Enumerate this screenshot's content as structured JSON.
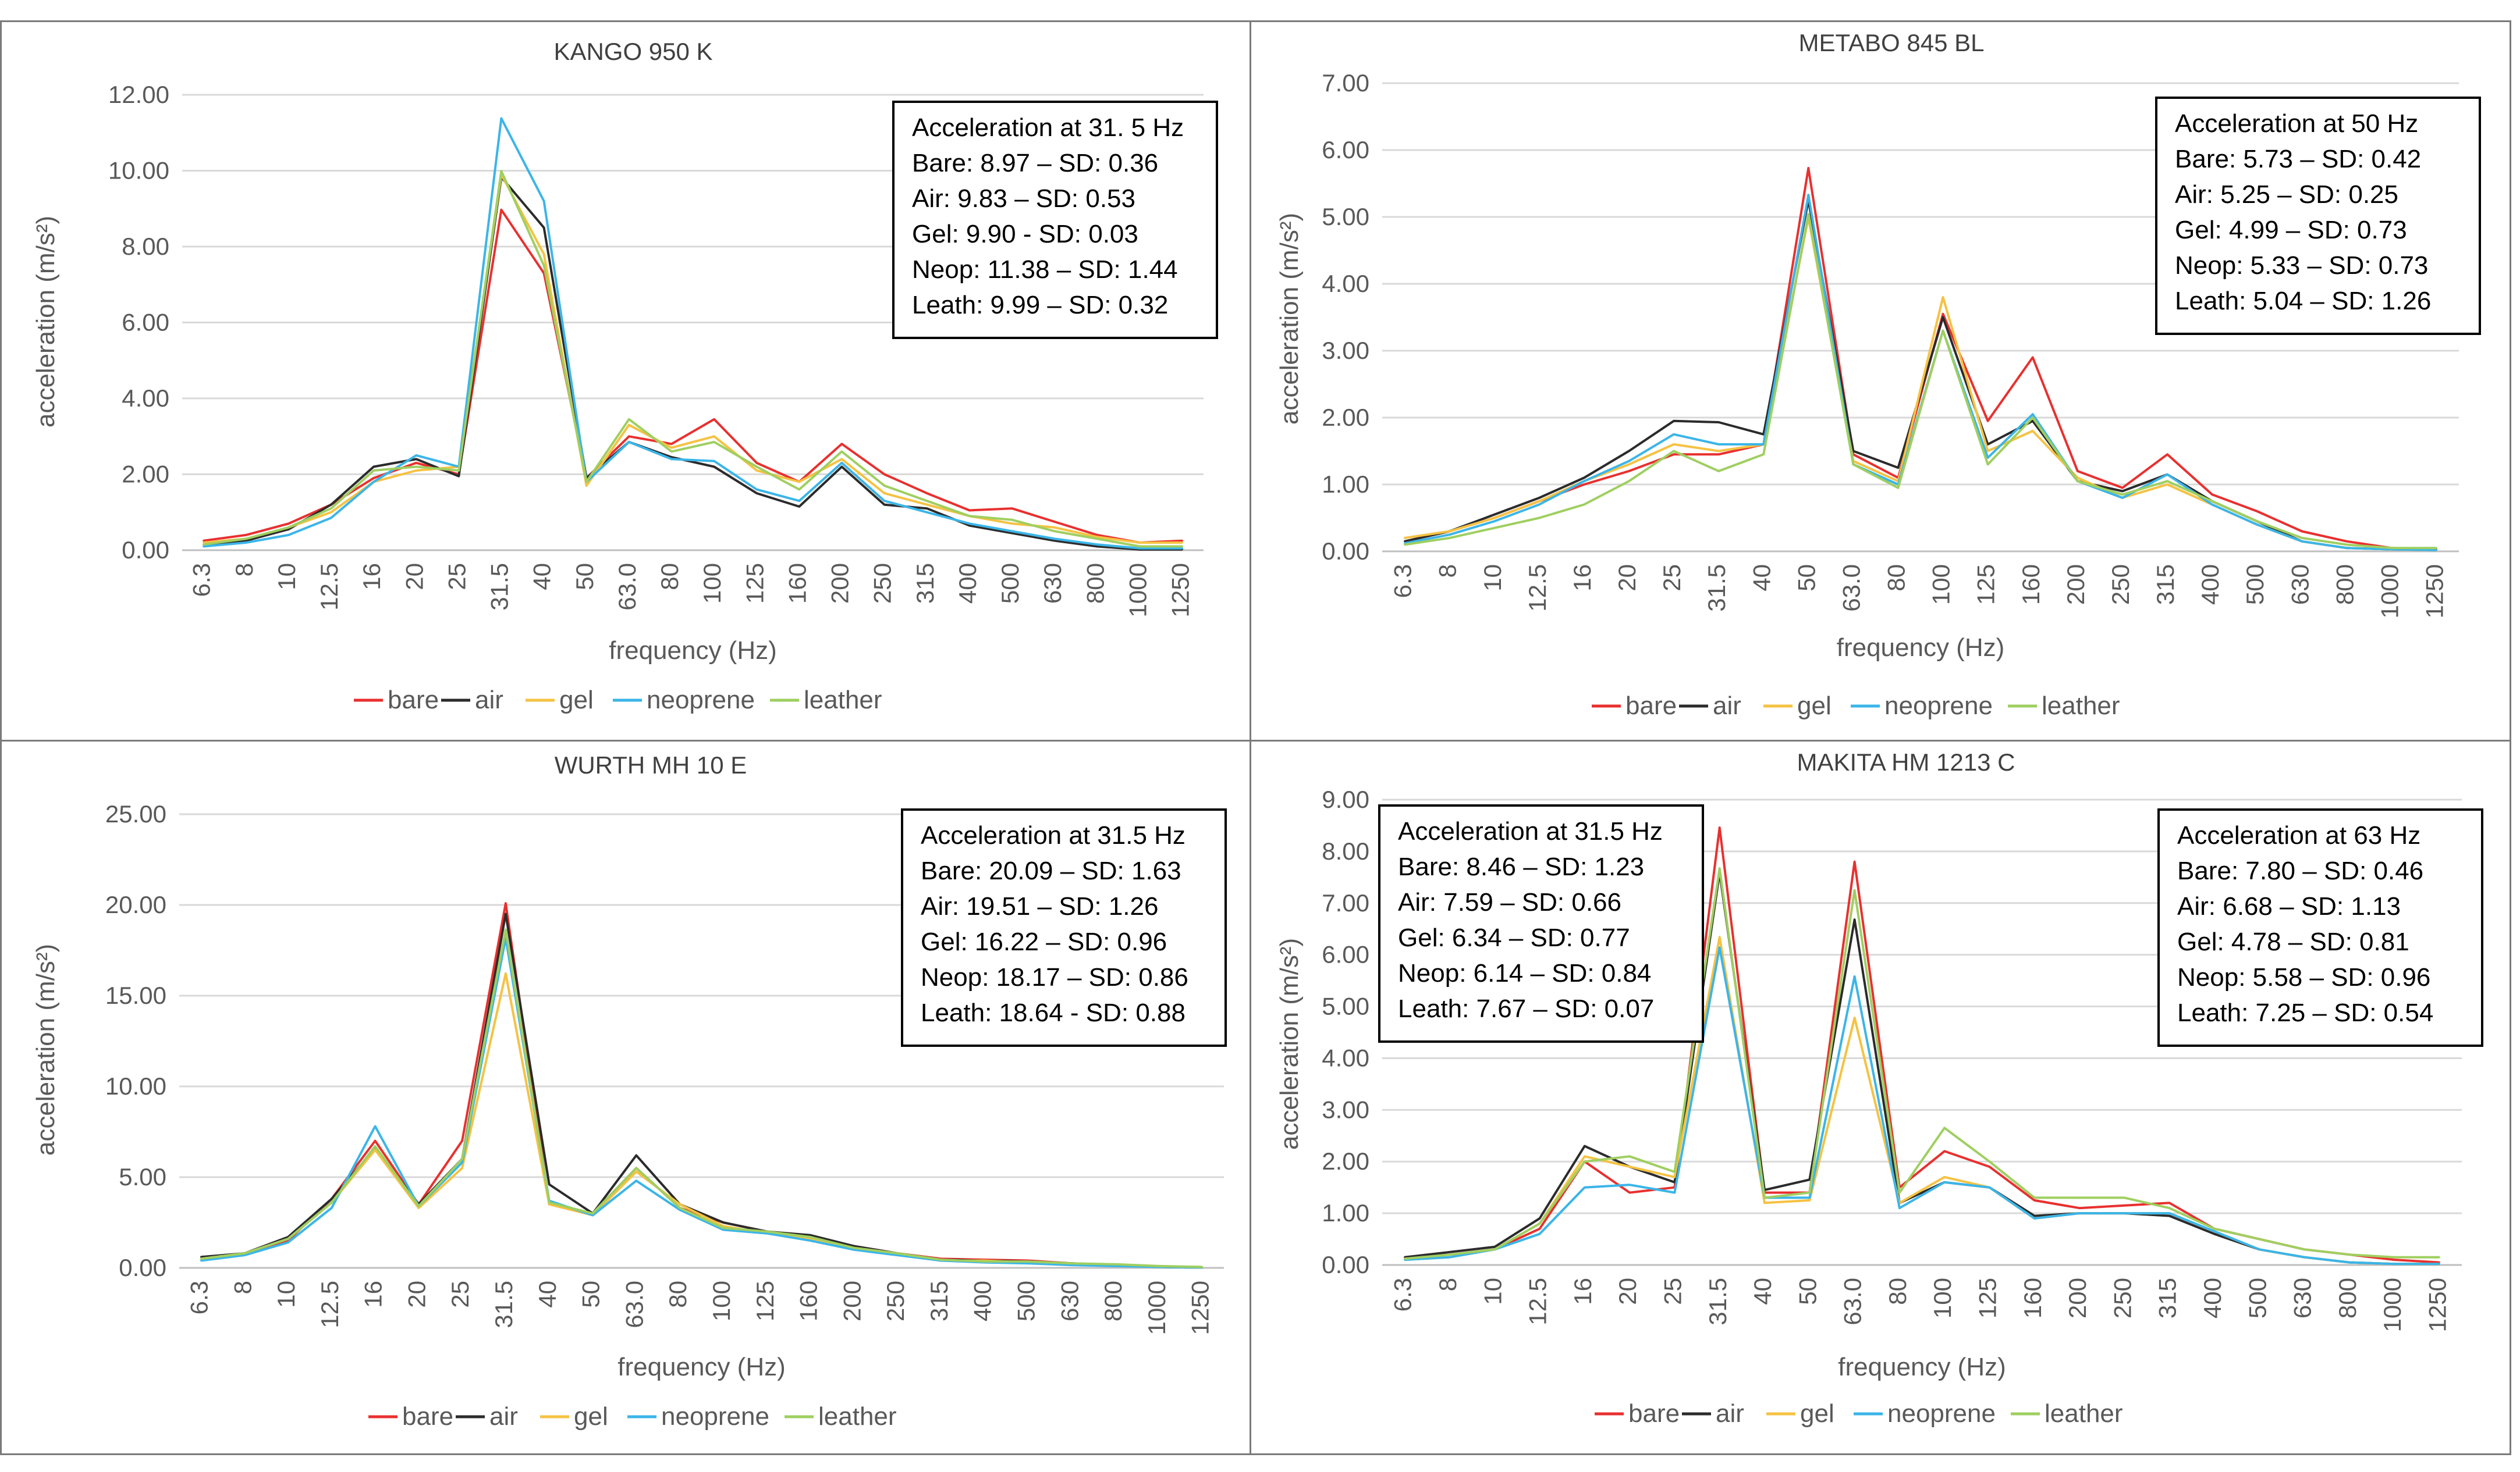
{
  "legend_labels": [
    "bare",
    "air",
    "gel",
    "neoprene",
    "leather"
  ],
  "colors": {
    "bare": "#e8302f",
    "air": "#2b2b2b",
    "gel": "#f5c242",
    "neoprene": "#3bb5e8",
    "leather": "#9fcf60"
  },
  "chart_data": [
    {
      "type": "line",
      "title": "KANGO 950 K",
      "xlabel": "frequency (Hz)",
      "ylabel": "acceleration (m/s²)",
      "categories": [
        "6.3",
        "8",
        "10",
        "12.5",
        "16",
        "20",
        "25",
        "31.5",
        "40",
        "50",
        "63.0",
        "80",
        "100",
        "125",
        "160",
        "200",
        "250",
        "315",
        "400",
        "500",
        "630",
        "800",
        "1000",
        "1250"
      ],
      "ylim": [
        0,
        12
      ],
      "ytick_labels": [
        "0.00",
        "2.00",
        "4.00",
        "6.00",
        "8.00",
        "10.00",
        "12.00"
      ],
      "legend_position": "bottom",
      "series": [
        {
          "name": "bare",
          "values": [
            0.25,
            0.4,
            0.7,
            1.2,
            1.9,
            2.3,
            2.0,
            8.97,
            7.3,
            1.9,
            3.0,
            2.8,
            3.45,
            2.3,
            1.8,
            2.8,
            2.0,
            1.5,
            1.05,
            1.1,
            0.75,
            0.4,
            0.2,
            0.25
          ]
        },
        {
          "name": "air",
          "values": [
            0.15,
            0.25,
            0.55,
            1.2,
            2.2,
            2.4,
            1.95,
            9.83,
            8.5,
            1.9,
            2.85,
            2.45,
            2.2,
            1.5,
            1.15,
            2.2,
            1.2,
            1.1,
            0.65,
            0.45,
            0.25,
            0.1,
            0.02,
            0.02
          ]
        },
        {
          "name": "gel",
          "values": [
            0.2,
            0.3,
            0.6,
            1.0,
            1.8,
            2.1,
            2.2,
            9.9,
            7.8,
            1.7,
            3.3,
            2.7,
            3.0,
            2.1,
            1.8,
            2.4,
            1.5,
            1.2,
            0.9,
            0.7,
            0.6,
            0.35,
            0.2,
            0.2
          ]
        },
        {
          "name": "neoprene",
          "values": [
            0.1,
            0.2,
            0.4,
            0.85,
            1.8,
            2.5,
            2.2,
            11.38,
            9.2,
            1.8,
            2.85,
            2.4,
            2.35,
            1.6,
            1.3,
            2.3,
            1.3,
            1.0,
            0.7,
            0.5,
            0.3,
            0.15,
            0.05,
            0.05
          ]
        },
        {
          "name": "leather",
          "values": [
            0.15,
            0.3,
            0.6,
            1.1,
            2.1,
            2.2,
            2.1,
            9.99,
            7.5,
            1.8,
            3.45,
            2.6,
            2.85,
            2.2,
            1.6,
            2.6,
            1.7,
            1.3,
            0.9,
            0.8,
            0.5,
            0.3,
            0.1,
            0.1
          ]
        }
      ],
      "annotations": [
        [
          "Acceleration at 31. 5 Hz",
          "Bare: 8.97 – SD: 0.36",
          "Air: 9.83 – SD: 0.53",
          "Gel: 9.90 - SD: 0.03",
          "Neop: 11.38 – SD: 1.44",
          "Leath: 9.99 – SD: 0.32"
        ]
      ]
    },
    {
      "type": "line",
      "title": "METABO 845 BL",
      "xlabel": "frequency (Hz)",
      "ylabel": "acceleration (m/s²)",
      "categories": [
        "6.3",
        "8",
        "10",
        "12.5",
        "16",
        "20",
        "25",
        "31.5",
        "40",
        "50",
        "63.0",
        "80",
        "100",
        "125",
        "160",
        "200",
        "250",
        "315",
        "400",
        "500",
        "630",
        "800",
        "1000",
        "1250"
      ],
      "ylim": [
        0,
        7
      ],
      "ytick_labels": [
        "0.00",
        "1.00",
        "2.00",
        "3.00",
        "4.00",
        "5.00",
        "6.00",
        "7.00"
      ],
      "legend_position": "bottom",
      "series": [
        {
          "name": "bare",
          "values": [
            0.15,
            0.3,
            0.5,
            0.75,
            1.0,
            1.2,
            1.45,
            1.45,
            1.6,
            5.73,
            1.45,
            1.1,
            3.55,
            1.95,
            2.9,
            1.2,
            0.95,
            1.45,
            0.85,
            0.6,
            0.3,
            0.15,
            0.05,
            0.03
          ]
        },
        {
          "name": "air",
          "values": [
            0.15,
            0.3,
            0.55,
            0.8,
            1.1,
            1.5,
            1.95,
            1.93,
            1.75,
            5.25,
            1.5,
            1.25,
            3.5,
            1.6,
            1.95,
            1.05,
            0.9,
            1.15,
            0.75,
            0.45,
            0.15,
            0.05,
            0.03,
            0.02
          ]
        },
        {
          "name": "gel",
          "values": [
            0.2,
            0.3,
            0.5,
            0.75,
            1.05,
            1.3,
            1.6,
            1.5,
            1.6,
            4.99,
            1.35,
            1.05,
            3.8,
            1.5,
            1.8,
            1.1,
            0.8,
            1.0,
            0.7,
            0.4,
            0.15,
            0.05,
            0.03,
            0.02
          ]
        },
        {
          "name": "neoprene",
          "values": [
            0.12,
            0.25,
            0.45,
            0.7,
            1.05,
            1.35,
            1.75,
            1.6,
            1.6,
            5.33,
            1.3,
            1.0,
            3.3,
            1.4,
            2.05,
            1.05,
            0.8,
            1.15,
            0.7,
            0.4,
            0.15,
            0.05,
            0.03,
            0.02
          ]
        },
        {
          "name": "leather",
          "values": [
            0.1,
            0.2,
            0.35,
            0.5,
            0.7,
            1.05,
            1.5,
            1.2,
            1.45,
            5.04,
            1.3,
            0.95,
            3.3,
            1.3,
            2.0,
            1.05,
            0.85,
            1.05,
            0.75,
            0.45,
            0.2,
            0.1,
            0.05,
            0.05
          ]
        }
      ],
      "annotations": [
        [
          "Acceleration at 50 Hz",
          "Bare: 5.73 – SD: 0.42",
          "Air: 5.25 – SD: 0.25",
          "Gel: 4.99 – SD: 0.73",
          "Neop: 5.33 – SD: 0.73",
          "Leath: 5.04 – SD: 1.26"
        ]
      ]
    },
    {
      "type": "line",
      "title": "WURTH MH 10 E",
      "xlabel": "frequency (Hz)",
      "ylabel": "acceleration (m/s²)",
      "categories": [
        "6.3",
        "8",
        "10",
        "12.5",
        "16",
        "20",
        "25",
        "31.5",
        "40",
        "50",
        "63.0",
        "80",
        "100",
        "125",
        "160",
        "200",
        "250",
        "315",
        "400",
        "500",
        "630",
        "800",
        "1000",
        "1250"
      ],
      "ylim": [
        0,
        25
      ],
      "ytick_labels": [
        "0.00",
        "5.00",
        "10.00",
        "15.00",
        "20.00",
        "25.00"
      ],
      "legend_position": "bottom",
      "series": [
        {
          "name": "bare",
          "values": [
            0.5,
            0.8,
            1.5,
            3.8,
            7.0,
            3.5,
            7.0,
            20.09,
            3.5,
            3.0,
            5.5,
            3.3,
            2.5,
            2.0,
            1.7,
            1.2,
            0.8,
            0.5,
            0.45,
            0.4,
            0.25,
            0.15,
            0.05,
            0.02
          ]
        },
        {
          "name": "air",
          "values": [
            0.6,
            0.8,
            1.7,
            3.8,
            6.6,
            3.5,
            6.0,
            19.51,
            4.6,
            3.0,
            6.2,
            3.5,
            2.5,
            2.0,
            1.8,
            1.2,
            0.8,
            0.45,
            0.4,
            0.35,
            0.25,
            0.15,
            0.05,
            0.02
          ]
        },
        {
          "name": "gel",
          "values": [
            0.5,
            0.8,
            1.6,
            3.6,
            6.5,
            3.3,
            5.5,
            16.22,
            3.5,
            2.9,
            5.3,
            3.5,
            2.3,
            1.9,
            1.6,
            1.1,
            0.8,
            0.4,
            0.4,
            0.3,
            0.2,
            0.1,
            0.05,
            0.02
          ]
        },
        {
          "name": "neoprene",
          "values": [
            0.4,
            0.7,
            1.4,
            3.3,
            7.8,
            3.4,
            5.8,
            18.17,
            3.7,
            2.9,
            4.8,
            3.2,
            2.1,
            1.9,
            1.5,
            1.0,
            0.7,
            0.4,
            0.3,
            0.25,
            0.15,
            0.1,
            0.05,
            0.02
          ]
        },
        {
          "name": "leather",
          "values": [
            0.5,
            0.8,
            1.6,
            3.6,
            6.7,
            3.4,
            6.0,
            18.64,
            3.6,
            3.0,
            5.5,
            3.3,
            2.2,
            2.0,
            1.7,
            1.1,
            0.8,
            0.45,
            0.35,
            0.35,
            0.25,
            0.2,
            0.1,
            0.05
          ]
        }
      ],
      "annotations": [
        [
          "Acceleration at 31.5 Hz",
          "Bare: 20.09 – SD: 1.63",
          "Air: 19.51 – SD: 1.26",
          "Gel: 16.22 – SD: 0.96",
          "Neop: 18.17 – SD: 0.86",
          "Leath: 18.64 - SD: 0.88"
        ]
      ]
    },
    {
      "type": "line",
      "title": "MAKITA HM 1213 C",
      "xlabel": "frequency (Hz)",
      "ylabel": "acceleration (m/s²)",
      "categories": [
        "6.3",
        "8",
        "10",
        "12.5",
        "16",
        "20",
        "25",
        "31.5",
        "40",
        "50",
        "63.0",
        "80",
        "100",
        "125",
        "160",
        "200",
        "250",
        "315",
        "400",
        "500",
        "630",
        "800",
        "1000",
        "1250"
      ],
      "ylim": [
        0,
        9
      ],
      "ytick_labels": [
        "0.00",
        "1.00",
        "2.00",
        "3.00",
        "4.00",
        "5.00",
        "6.00",
        "7.00",
        "8.00",
        "9.00"
      ],
      "legend_position": "bottom",
      "series": [
        {
          "name": "bare",
          "values": [
            0.15,
            0.2,
            0.3,
            0.7,
            2.0,
            1.4,
            1.5,
            8.46,
            1.4,
            1.4,
            7.8,
            1.5,
            2.2,
            1.9,
            1.25,
            1.1,
            1.15,
            1.2,
            0.7,
            0.5,
            0.3,
            0.2,
            0.1,
            0.05
          ]
        },
        {
          "name": "air",
          "values": [
            0.15,
            0.25,
            0.35,
            0.9,
            2.3,
            1.9,
            1.6,
            7.59,
            1.45,
            1.65,
            6.68,
            1.2,
            1.6,
            1.5,
            0.95,
            1.0,
            1.0,
            0.95,
            0.6,
            0.3,
            0.15,
            0.05,
            0.02,
            0.02
          ]
        },
        {
          "name": "gel",
          "values": [
            0.1,
            0.15,
            0.3,
            0.8,
            2.1,
            1.9,
            1.7,
            6.34,
            1.2,
            1.25,
            4.78,
            1.2,
            1.7,
            1.5,
            0.9,
            1.0,
            1.0,
            1.0,
            0.65,
            0.3,
            0.15,
            0.05,
            0.02,
            0.02
          ]
        },
        {
          "name": "neoprene",
          "values": [
            0.1,
            0.15,
            0.3,
            0.6,
            1.5,
            1.55,
            1.4,
            6.14,
            1.3,
            1.3,
            5.58,
            1.1,
            1.6,
            1.5,
            0.9,
            1.0,
            1.0,
            1.0,
            0.65,
            0.3,
            0.15,
            0.05,
            0.02,
            0.02
          ]
        },
        {
          "name": "leather",
          "values": [
            0.12,
            0.2,
            0.3,
            0.8,
            2.0,
            2.1,
            1.8,
            7.67,
            1.3,
            1.4,
            7.25,
            1.4,
            2.65,
            2.0,
            1.3,
            1.3,
            1.3,
            1.1,
            0.7,
            0.5,
            0.3,
            0.2,
            0.15,
            0.15
          ]
        }
      ],
      "annotations": [
        [
          "Acceleration at 31.5 Hz",
          "Bare: 8.46 – SD: 1.23",
          "Air: 7.59 – SD: 0.66",
          "Gel: 6.34 – SD: 0.77",
          "Neop: 6.14 – SD: 0.84",
          "Leath: 7.67 – SD: 0.07"
        ],
        [
          "Acceleration at 63 Hz",
          "Bare: 7.80 – SD: 0.46",
          "Air: 6.68 – SD: 1.13",
          "Gel: 4.78 – SD: 0.81",
          "Neop: 5.58 – SD: 0.96",
          "Leath: 7.25 – SD: 0.54"
        ]
      ]
    }
  ]
}
